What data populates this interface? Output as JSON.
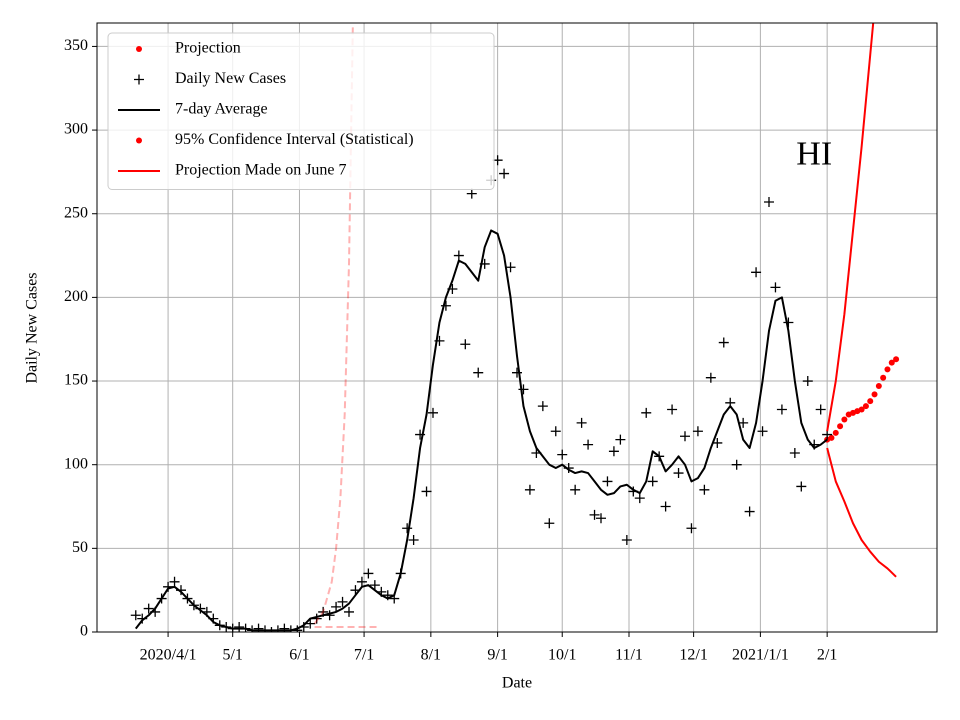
{
  "chart_data": {
    "type": "line",
    "xlabel": "Date",
    "ylabel": "Daily New Cases",
    "xlim": [
      -33,
      357
    ],
    "ylim": [
      0,
      364
    ],
    "xticks": [
      {
        "value": 0,
        "label": "2020/4/1"
      },
      {
        "value": 30,
        "label": "5/1"
      },
      {
        "value": 61,
        "label": "6/1"
      },
      {
        "value": 91,
        "label": "7/1"
      },
      {
        "value": 122,
        "label": "8/1"
      },
      {
        "value": 153,
        "label": "9/1"
      },
      {
        "value": 183,
        "label": "10/1"
      },
      {
        "value": 214,
        "label": "11/1"
      },
      {
        "value": 244,
        "label": "12/1"
      },
      {
        "value": 275,
        "label": "2021/1/1"
      },
      {
        "value": 306,
        "label": "2/1"
      }
    ],
    "yticks": [
      0,
      50,
      100,
      150,
      200,
      250,
      300,
      350
    ],
    "grid": true,
    "legend": "upper left",
    "annotation": {
      "text": "HI",
      "x": 300,
      "y": 284
    },
    "x": [
      -15,
      -12,
      -9,
      -6,
      -3,
      0,
      3,
      6,
      9,
      12,
      15,
      18,
      21,
      24,
      27,
      30,
      33,
      36,
      39,
      42,
      45,
      48,
      51,
      54,
      57,
      60,
      63,
      66,
      69,
      72,
      75,
      78,
      81,
      84,
      87,
      90,
      93,
      96,
      99,
      102,
      105,
      108,
      111,
      114,
      117,
      120,
      123,
      126,
      129,
      132,
      135,
      138,
      141,
      144,
      147,
      150,
      153,
      156,
      159,
      162,
      165,
      168,
      171,
      174,
      177,
      180,
      183,
      186,
      189,
      192,
      195,
      198,
      201,
      204,
      207,
      210,
      213,
      216,
      219,
      222,
      225,
      228,
      231,
      234,
      237,
      240,
      243,
      246,
      249,
      252,
      255,
      258,
      261,
      264,
      267,
      270,
      273,
      276,
      279,
      282,
      285,
      288,
      291,
      294,
      297,
      300,
      303,
      306
    ],
    "series": [
      {
        "name": "Projection",
        "style": "dot",
        "color": "#ff0000",
        "x": [
          306,
          308,
          310,
          312,
          314,
          316,
          318,
          320,
          322,
          324,
          326,
          328,
          330,
          332,
          334,
          336,
          338
        ],
        "values": [
          115,
          116,
          119,
          123,
          127,
          130,
          131,
          132,
          133,
          135,
          138,
          142,
          147,
          152,
          157,
          161,
          163
        ]
      },
      {
        "name": "Daily New Cases",
        "style": "plus",
        "color": "#000000",
        "values": [
          10,
          8,
          14,
          12,
          20,
          27,
          30,
          25,
          20,
          16,
          14,
          12,
          8,
          4,
          3,
          2,
          3,
          2,
          1,
          2,
          1,
          0,
          1,
          2,
          1,
          1,
          3,
          5,
          8,
          12,
          10,
          15,
          18,
          12,
          25,
          30,
          35,
          28,
          24,
          22,
          20,
          35,
          62,
          55,
          118,
          84,
          131,
          174,
          195,
          205,
          225,
          172,
          262,
          155,
          220,
          270,
          282,
          274,
          218,
          155,
          145,
          85,
          107,
          135,
          65,
          120,
          106,
          98,
          85,
          125,
          112,
          70,
          68,
          90,
          108,
          115,
          55,
          84,
          80,
          131,
          90,
          105,
          75,
          133,
          95,
          117,
          62,
          120,
          85,
          152,
          113,
          173,
          137,
          100,
          125,
          72,
          215,
          120,
          257,
          206,
          133,
          185,
          107,
          87,
          150,
          112,
          133,
          118
        ]
      },
      {
        "name": "7-day Average",
        "style": "line",
        "color": "#000000",
        "values": [
          2,
          7,
          10,
          14,
          20,
          26,
          27,
          24,
          20,
          16,
          13,
          10,
          6,
          4,
          3,
          2,
          2,
          2,
          1,
          1,
          1,
          1,
          1,
          1,
          1,
          2,
          4,
          8,
          9,
          10,
          11,
          12,
          14,
          17,
          22,
          27,
          28,
          25,
          22,
          20,
          22,
          35,
          55,
          80,
          110,
          130,
          160,
          185,
          200,
          210,
          222,
          220,
          215,
          210,
          230,
          240,
          238,
          225,
          200,
          165,
          135,
          120,
          110,
          105,
          100,
          98,
          100,
          97,
          95,
          96,
          95,
          90,
          85,
          82,
          83,
          87,
          88,
          85,
          83,
          90,
          108,
          105,
          96,
          100,
          105,
          100,
          90,
          92,
          98,
          110,
          120,
          130,
          135,
          130,
          115,
          110,
          125,
          150,
          180,
          198,
          200,
          180,
          150,
          125,
          115,
          110,
          112,
          115
        ]
      },
      {
        "name": "95% Confidence Interval (Statistical)",
        "style": "line",
        "legend_style": "dot",
        "color": "#ff0000",
        "x": [
          306,
          310,
          314,
          318,
          322,
          326,
          330
        ],
        "values": [
          120,
          150,
          190,
          240,
          290,
          345,
          400
        ]
      },
      {
        "style": "line",
        "color": "#ff0000",
        "x": [
          306,
          310,
          314,
          318,
          322,
          326,
          330,
          334,
          338
        ],
        "values": [
          110,
          90,
          78,
          65,
          55,
          48,
          42,
          38,
          33
        ]
      },
      {
        "name": "Projection Made on June 7",
        "style": "dashed",
        "legend_style": "line",
        "color": "#ff0000",
        "alpha": 0.3,
        "x": [
          68,
          72,
          76,
          78,
          80,
          82,
          84,
          86
        ],
        "values": [
          5,
          12,
          30,
          50,
          80,
          130,
          220,
          380
        ]
      },
      {
        "style": "dashed",
        "color": "#ff0000",
        "alpha": 0.3,
        "x": [
          68,
          75,
          82,
          90,
          98
        ],
        "values": [
          3,
          3,
          3,
          3,
          3
        ]
      }
    ]
  }
}
